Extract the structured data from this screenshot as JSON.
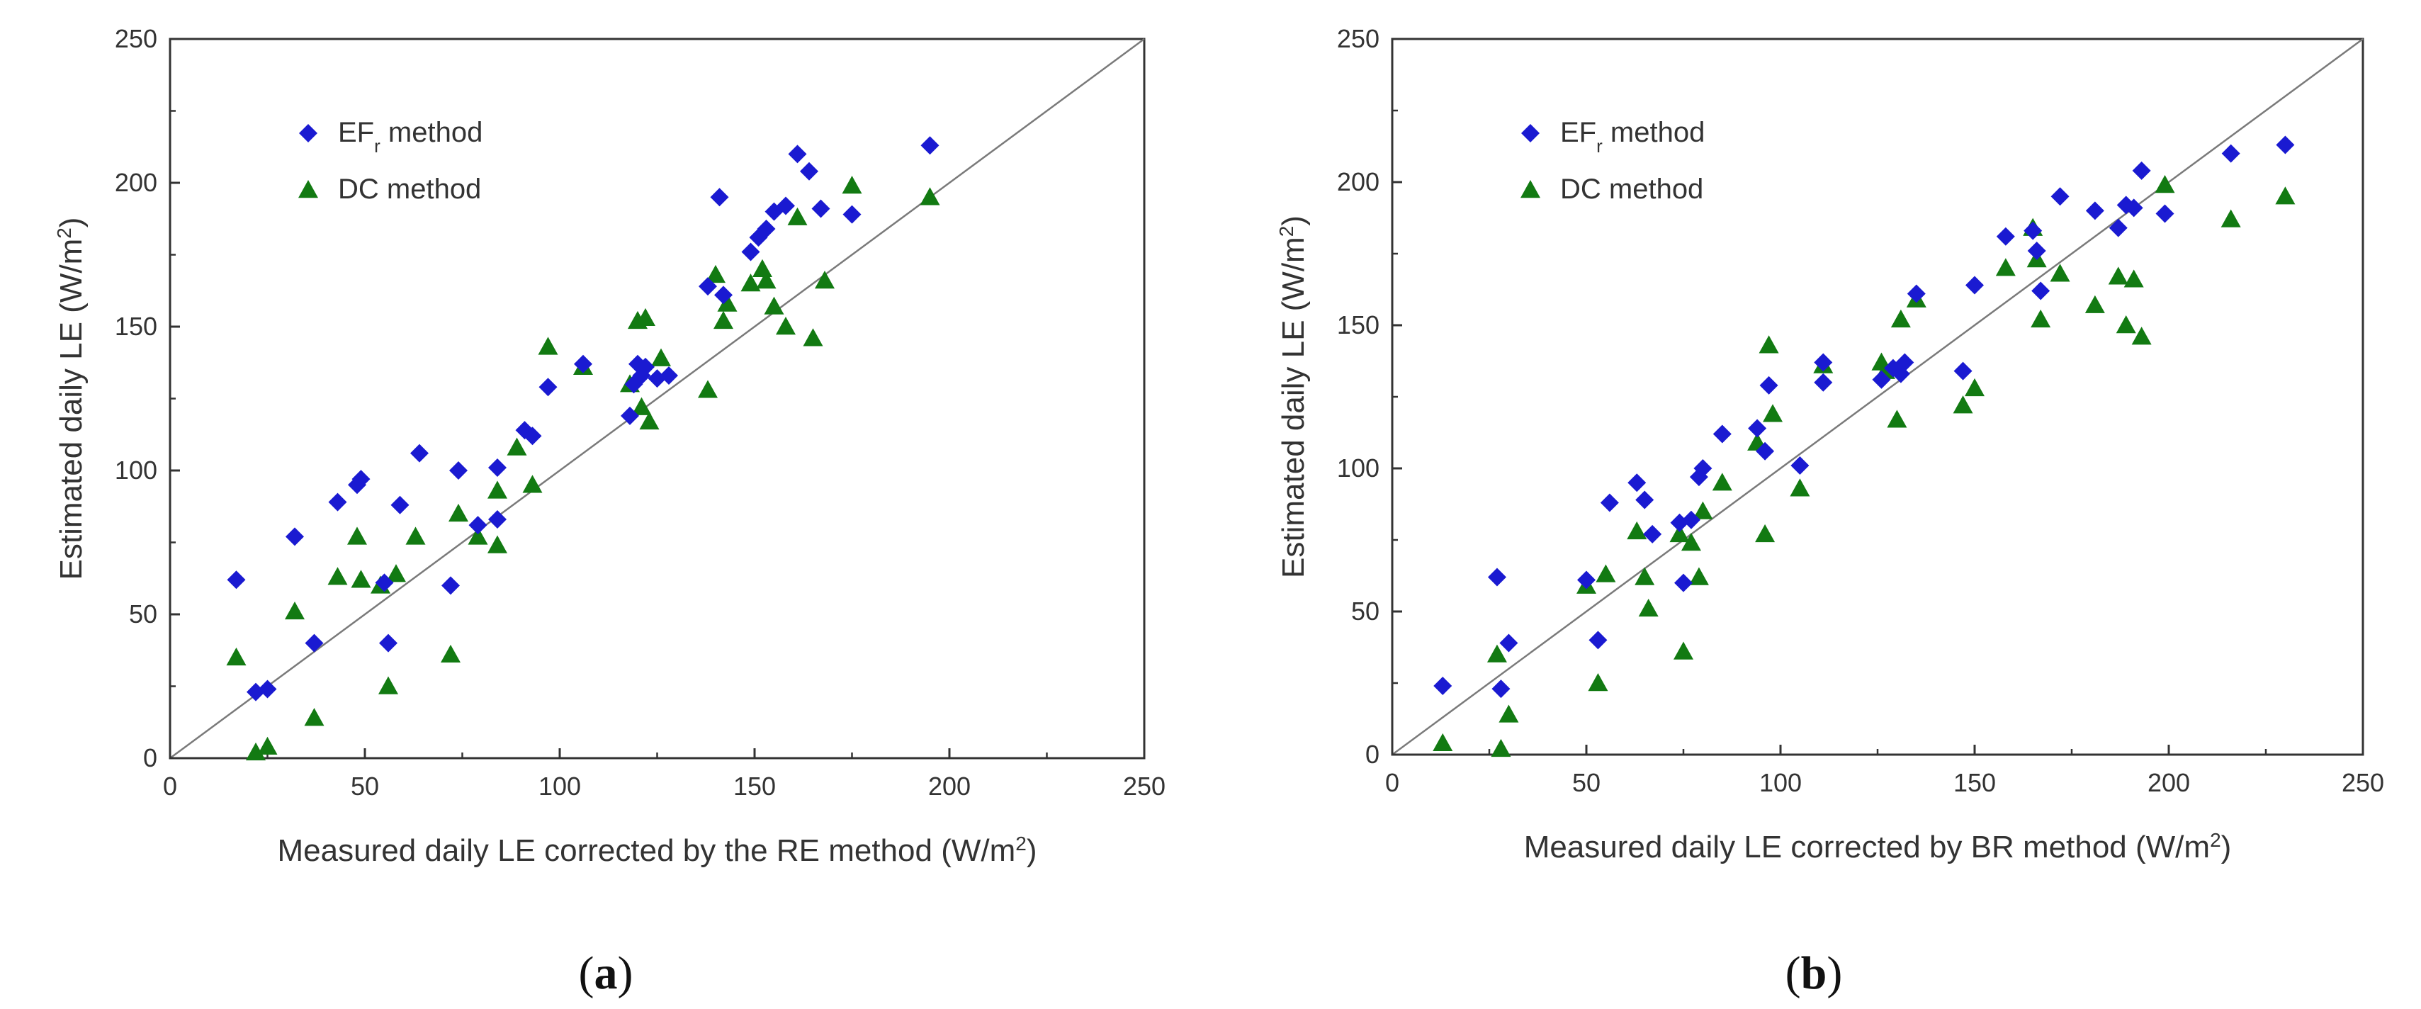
{
  "chart_data": [
    {
      "panel_label": "a",
      "type": "scatter",
      "xlabel_main": "Measured daily LE corrected by the RE method (W/m",
      "xlabel_sup": "2",
      "xlabel_end": ")",
      "ylabel_main": "Estimated daily LE (W/m",
      "ylabel_sup": "2",
      "ylabel_end": ")",
      "xlim": [
        0,
        250
      ],
      "ylim": [
        0,
        250
      ],
      "xticks": [
        "0",
        "50",
        "100",
        "150",
        "200",
        "250"
      ],
      "yticks": [
        "0",
        "50",
        "100",
        "150",
        "200",
        "250"
      ],
      "reference_line": "1:1",
      "legend_position": "top-left",
      "series": [
        {
          "name": "EFr method",
          "legend_main": "EF",
          "legend_sub": "r",
          "legend_end": " method",
          "marker": "diamond",
          "color": "#1a1ad1",
          "points": [
            [
              17,
              62
            ],
            [
              22,
              23
            ],
            [
              25,
              24
            ],
            [
              32,
              77
            ],
            [
              37,
              40
            ],
            [
              43,
              89
            ],
            [
              48,
              95
            ],
            [
              49,
              97
            ],
            [
              55,
              61
            ],
            [
              56,
              40
            ],
            [
              59,
              88
            ],
            [
              64,
              106
            ],
            [
              72,
              60
            ],
            [
              74,
              100
            ],
            [
              79,
              81
            ],
            [
              84,
              101
            ],
            [
              84,
              83
            ],
            [
              91,
              114
            ],
            [
              93,
              112
            ],
            [
              97,
              129
            ],
            [
              106,
              137
            ],
            [
              118,
              119
            ],
            [
              119,
              130
            ],
            [
              120,
              137
            ],
            [
              121,
              133
            ],
            [
              122,
              136
            ],
            [
              125,
              132
            ],
            [
              128,
              133
            ],
            [
              138,
              164
            ],
            [
              141,
              195
            ],
            [
              142,
              161
            ],
            [
              149,
              176
            ],
            [
              151,
              181
            ],
            [
              153,
              184
            ],
            [
              155,
              190
            ],
            [
              158,
              192
            ],
            [
              161,
              210
            ],
            [
              164,
              204
            ],
            [
              167,
              191
            ],
            [
              175,
              189
            ],
            [
              195,
              213
            ]
          ]
        },
        {
          "name": "DC method",
          "legend_main": "DC method",
          "legend_sub": "",
          "legend_end": "",
          "marker": "triangle",
          "color": "#127a12",
          "points": [
            [
              17,
              35
            ],
            [
              22,
              2
            ],
            [
              25,
              4
            ],
            [
              32,
              51
            ],
            [
              37,
              14
            ],
            [
              43,
              63
            ],
            [
              48,
              77
            ],
            [
              49,
              62
            ],
            [
              54,
              60
            ],
            [
              56,
              25
            ],
            [
              58,
              64
            ],
            [
              63,
              77
            ],
            [
              72,
              36
            ],
            [
              74,
              85
            ],
            [
              79,
              77
            ],
            [
              84,
              93
            ],
            [
              84,
              74
            ],
            [
              89,
              108
            ],
            [
              93,
              95
            ],
            [
              97,
              143
            ],
            [
              106,
              136
            ],
            [
              118,
              130
            ],
            [
              120,
              152
            ],
            [
              121,
              122
            ],
            [
              122,
              153
            ],
            [
              123,
              117
            ],
            [
              126,
              139
            ],
            [
              138,
              128
            ],
            [
              140,
              168
            ],
            [
              142,
              152
            ],
            [
              143,
              158
            ],
            [
              149,
              165
            ],
            [
              152,
              170
            ],
            [
              153,
              166
            ],
            [
              155,
              157
            ],
            [
              158,
              150
            ],
            [
              161,
              188
            ],
            [
              165,
              146
            ],
            [
              168,
              166
            ],
            [
              175,
              199
            ],
            [
              195,
              195
            ]
          ]
        }
      ]
    },
    {
      "panel_label": "b",
      "type": "scatter",
      "xlabel_main": "Measured daily LE corrected by BR method (W/m",
      "xlabel_sup": "2",
      "xlabel_end": ")",
      "ylabel_main": "Estimated daily LE (W/m",
      "ylabel_sup": "2",
      "ylabel_end": ")",
      "xlim": [
        0,
        250
      ],
      "ylim": [
        0,
        250
      ],
      "xticks": [
        "0",
        "50",
        "100",
        "150",
        "200",
        "250"
      ],
      "yticks": [
        "0",
        "50",
        "100",
        "150",
        "200",
        "250"
      ],
      "reference_line": "1:1",
      "legend_position": "top-left",
      "series": [
        {
          "name": "EFr method",
          "legend_main": "EF",
          "legend_sub": "r",
          "legend_end": " method",
          "marker": "diamond",
          "color": "#1a1ad1",
          "points": [
            [
              13,
              24
            ],
            [
              27,
              62
            ],
            [
              28,
              23
            ],
            [
              30,
              39
            ],
            [
              50,
              61
            ],
            [
              53,
              40
            ],
            [
              56,
              88
            ],
            [
              63,
              95
            ],
            [
              65,
              89
            ],
            [
              67,
              77
            ],
            [
              74,
              81
            ],
            [
              75,
              60
            ],
            [
              77,
              82
            ],
            [
              79,
              97
            ],
            [
              80,
              100
            ],
            [
              85,
              112
            ],
            [
              94,
              114
            ],
            [
              96,
              106
            ],
            [
              97,
              129
            ],
            [
              105,
              101
            ],
            [
              111,
              130
            ],
            [
              111,
              137
            ],
            [
              126,
              131
            ],
            [
              129,
              135
            ],
            [
              131,
              133
            ],
            [
              132,
              137
            ],
            [
              135,
              161
            ],
            [
              147,
              134
            ],
            [
              150,
              164
            ],
            [
              158,
              181
            ],
            [
              165,
              183
            ],
            [
              166,
              176
            ],
            [
              167,
              162
            ],
            [
              172,
              195
            ],
            [
              181,
              190
            ],
            [
              187,
              184
            ],
            [
              189,
              192
            ],
            [
              191,
              191
            ],
            [
              193,
              204
            ],
            [
              199,
              189
            ],
            [
              216,
              210
            ],
            [
              230,
              213
            ]
          ]
        },
        {
          "name": "DC method",
          "legend_main": "DC method",
          "legend_sub": "",
          "legend_end": "",
          "marker": "triangle",
          "color": "#127a12",
          "points": [
            [
              13,
              4
            ],
            [
              27,
              35
            ],
            [
              28,
              2
            ],
            [
              30,
              14
            ],
            [
              50,
              59
            ],
            [
              53,
              25
            ],
            [
              55,
              63
            ],
            [
              63,
              78
            ],
            [
              65,
              62
            ],
            [
              66,
              51
            ],
            [
              74,
              77
            ],
            [
              75,
              36
            ],
            [
              77,
              74
            ],
            [
              79,
              62
            ],
            [
              80,
              85
            ],
            [
              85,
              95
            ],
            [
              94,
              109
            ],
            [
              96,
              77
            ],
            [
              97,
              143
            ],
            [
              98,
              119
            ],
            [
              105,
              93
            ],
            [
              111,
              136
            ],
            [
              126,
              137
            ],
            [
              127,
              134
            ],
            [
              130,
              117
            ],
            [
              131,
              152
            ],
            [
              135,
              159
            ],
            [
              147,
              122
            ],
            [
              150,
              128
            ],
            [
              158,
              170
            ],
            [
              165,
              184
            ],
            [
              166,
              173
            ],
            [
              167,
              152
            ],
            [
              172,
              168
            ],
            [
              181,
              157
            ],
            [
              187,
              167
            ],
            [
              189,
              150
            ],
            [
              191,
              166
            ],
            [
              193,
              146
            ],
            [
              199,
              199
            ],
            [
              216,
              187
            ],
            [
              230,
              195
            ]
          ]
        }
      ]
    }
  ]
}
